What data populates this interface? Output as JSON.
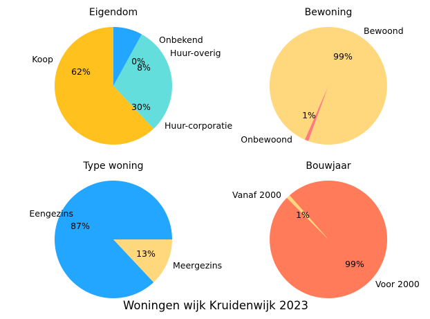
{
  "suptitle": "Woningen wijk Kruidenwijk 2023",
  "chart_data": [
    {
      "type": "pie",
      "title": "Eigendom",
      "slices": [
        {
          "label": "Koop",
          "value": 62,
          "pct_label": "62%",
          "color": "#FFC11E"
        },
        {
          "label": "Huur-corporatie",
          "value": 30,
          "pct_label": "30%",
          "color": "#63DEDC"
        },
        {
          "label": "Huur-overig",
          "value": 8,
          "pct_label": "8%",
          "color": "#22A6FF"
        },
        {
          "label": "Onbekend",
          "value": 0,
          "pct_label": "0%",
          "color": "#FFD57D"
        }
      ]
    },
    {
      "type": "pie",
      "title": "Bewoning",
      "slices": [
        {
          "label": "Bewoond",
          "value": 99,
          "pct_label": "99%",
          "color": "#FFD77D"
        },
        {
          "label": "Onbewoond",
          "value": 1,
          "pct_label": "1%",
          "color": "#FF7B7B"
        }
      ]
    },
    {
      "type": "pie",
      "title": "Type woning",
      "slices": [
        {
          "label": "Eengezins",
          "value": 87,
          "pct_label": "87%",
          "color": "#22A6FF"
        },
        {
          "label": "Meergezins",
          "value": 13,
          "pct_label": "13%",
          "color": "#FFD77D"
        }
      ]
    },
    {
      "type": "pie",
      "title": "Bouwjaar",
      "slices": [
        {
          "label": "Voor 2000",
          "value": 99,
          "pct_label": "99%",
          "color": "#FF7B5A"
        },
        {
          "label": "Vanaf 2000",
          "value": 1,
          "pct_label": "1%",
          "color": "#FFD77D"
        }
      ]
    }
  ]
}
